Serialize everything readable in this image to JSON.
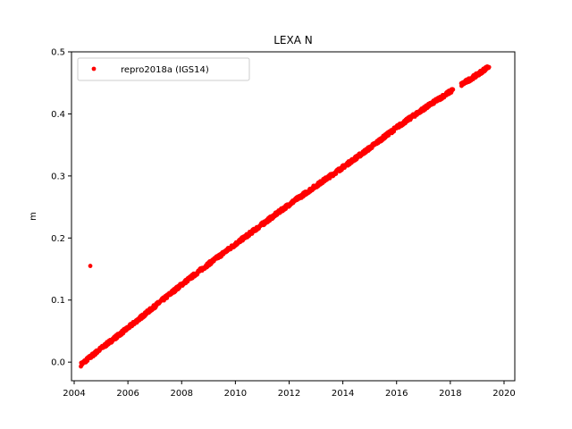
{
  "chart_data": {
    "type": "scatter",
    "title": "LEXA N",
    "xlabel": "",
    "ylabel": "m",
    "xlim": [
      2003.9,
      2020.4
    ],
    "ylim": [
      -0.03,
      0.5
    ],
    "xticks": [
      2004,
      2006,
      2008,
      2010,
      2012,
      2014,
      2016,
      2018,
      2020
    ],
    "yticks": [
      0.0,
      0.1,
      0.2,
      0.3,
      0.4,
      0.5
    ],
    "ytick_labels": [
      "0.0",
      "0.1",
      "0.2",
      "0.3",
      "0.4",
      "0.5"
    ],
    "grid": false,
    "legend_position": "top-left",
    "series": [
      {
        "name": "repro2018a (IGS14)",
        "color": "#ff0000",
        "marker": "dot",
        "trend": {
          "x": [
            2004.25,
            2005.0,
            2006.0,
            2007.0,
            2008.0,
            2009.0,
            2010.0,
            2011.0,
            2012.0,
            2013.0,
            2014.0,
            2015.0,
            2016.0,
            2017.0,
            2018.0,
            2019.0,
            2019.45
          ],
          "y": [
            -0.004,
            0.022,
            0.055,
            0.09,
            0.125,
            0.158,
            0.19,
            0.222,
            0.254,
            0.284,
            0.314,
            0.345,
            0.378,
            0.408,
            0.436,
            0.463,
            0.477
          ]
        },
        "outliers": {
          "x": [
            2004.6
          ],
          "y": [
            0.155
          ]
        },
        "gaps": [
          [
            2018.1,
            2018.4
          ]
        ]
      }
    ]
  }
}
